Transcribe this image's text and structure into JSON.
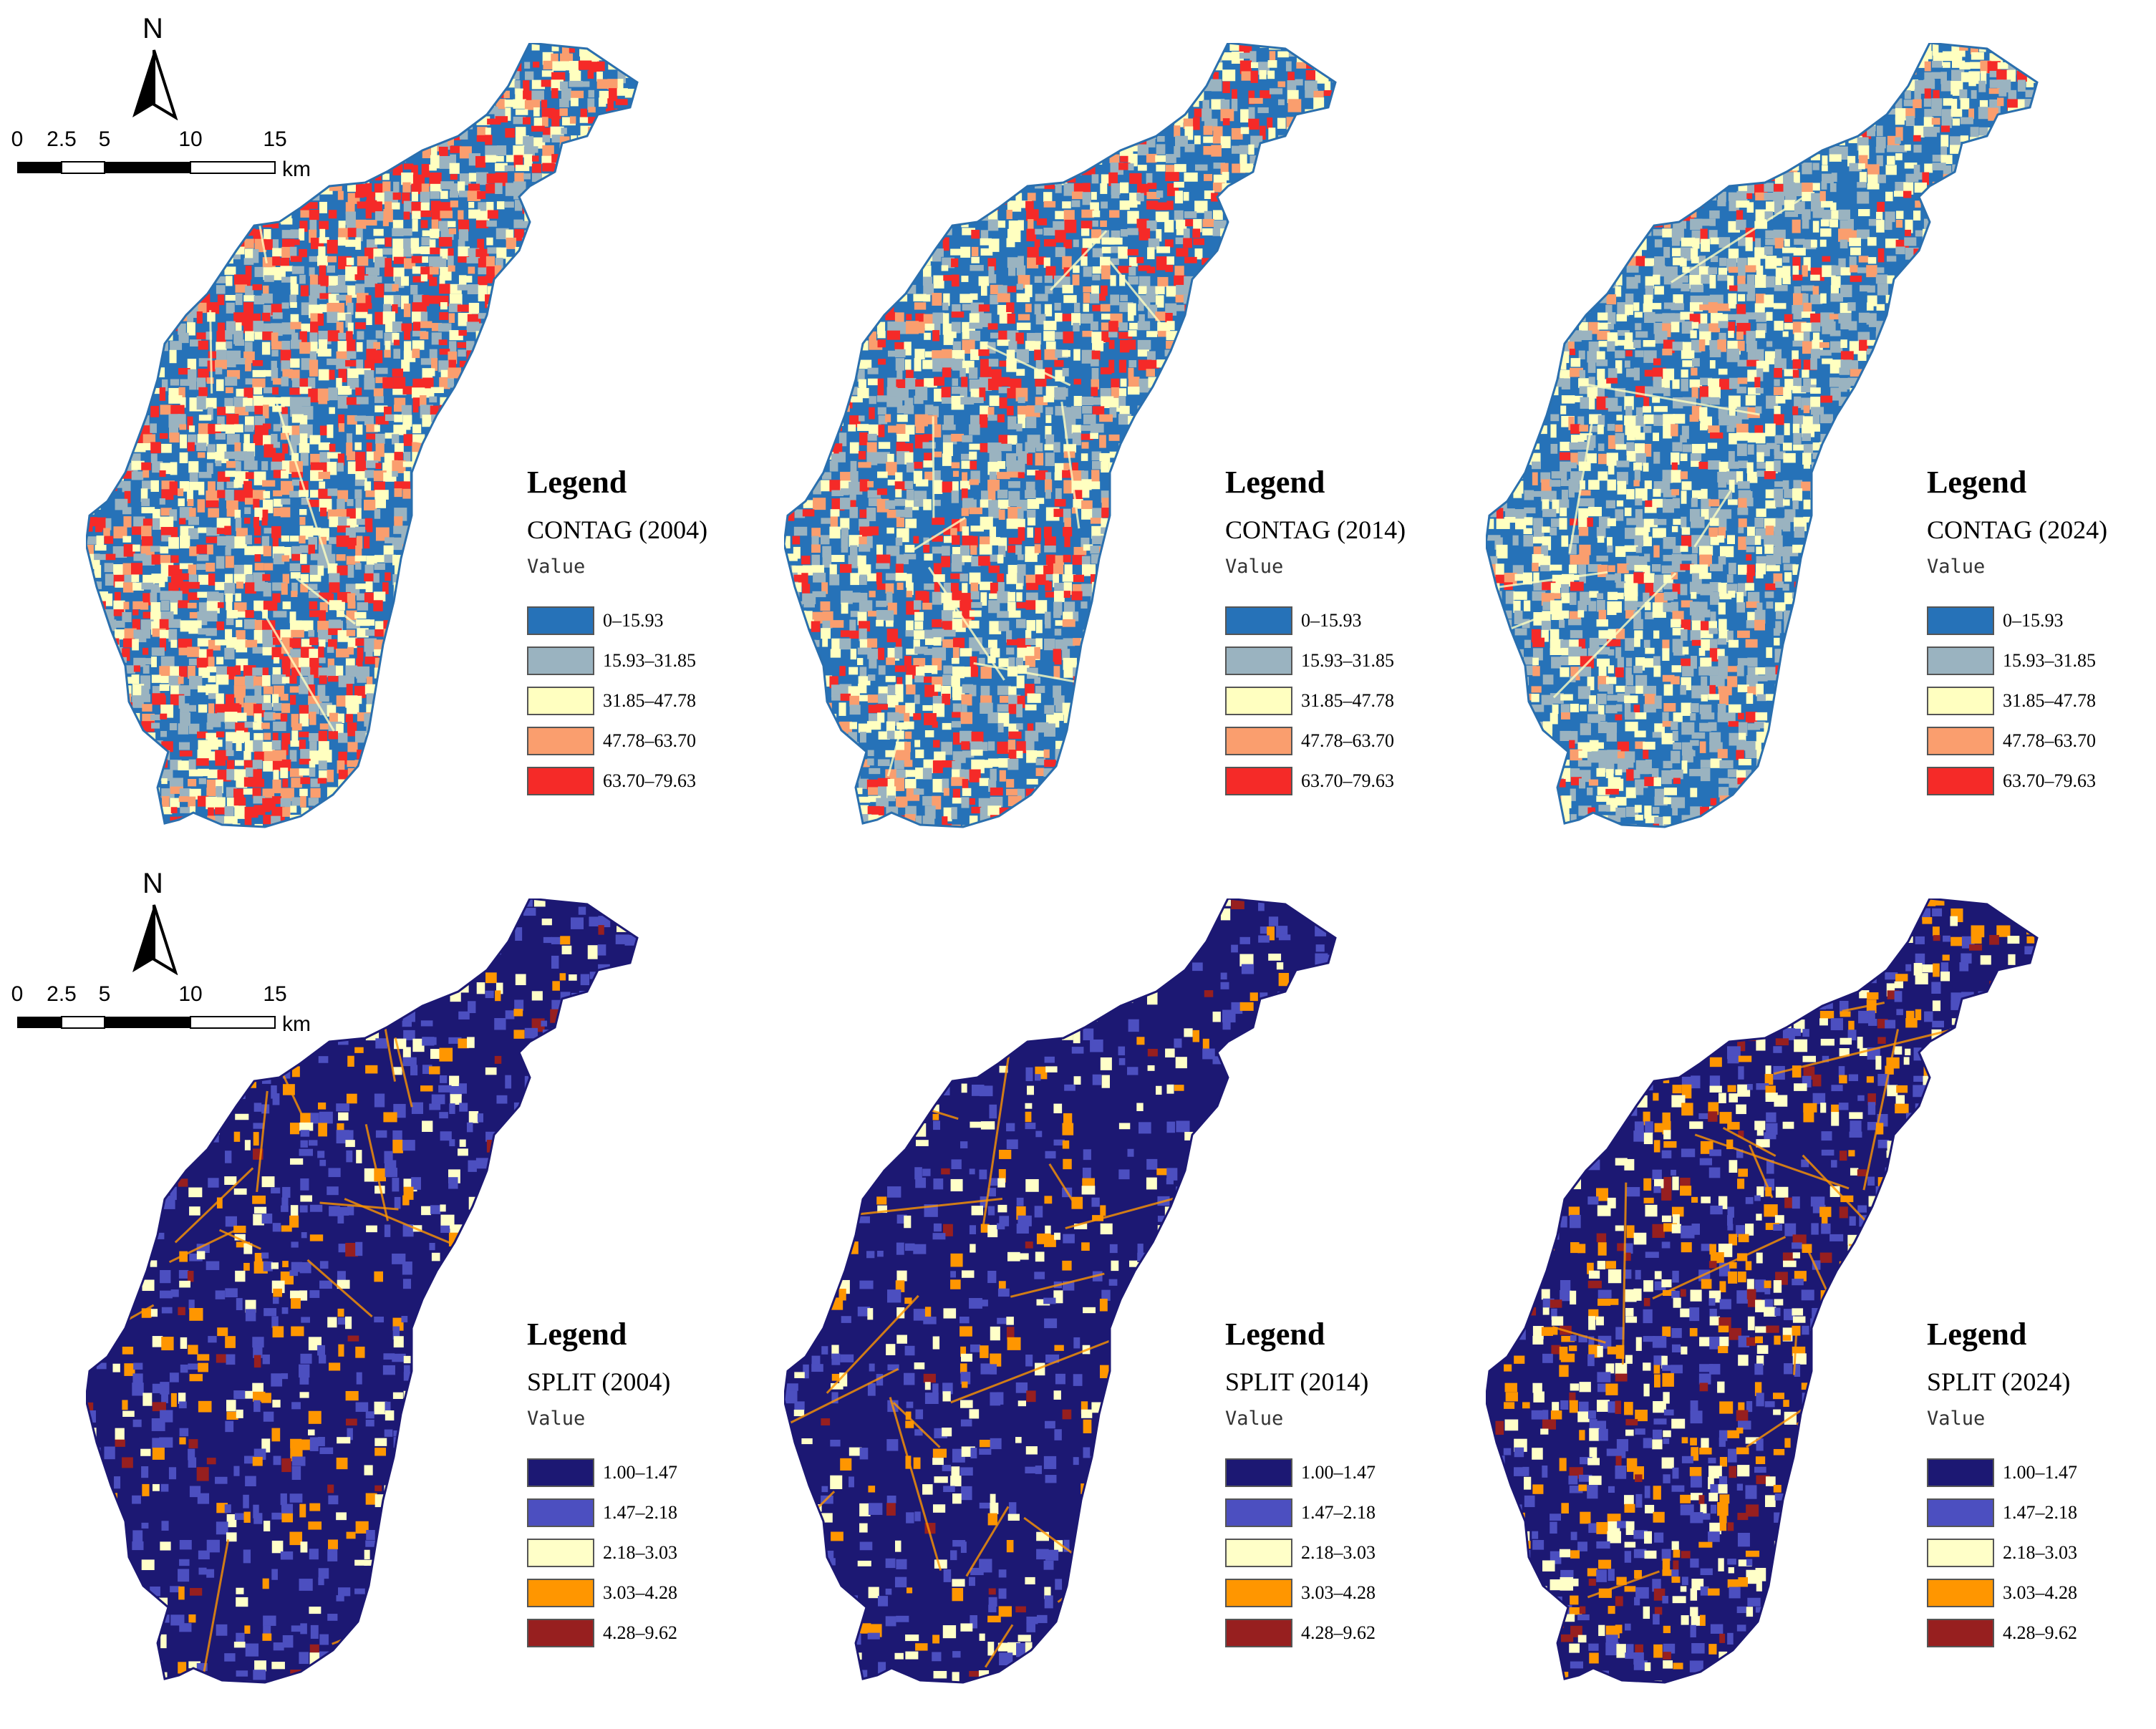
{
  "north_label": "N",
  "scale": {
    "ticks": [
      "0",
      "2.5",
      "5",
      "10",
      "15"
    ],
    "unit": "km"
  },
  "legend_heading": "Legend",
  "legend_value_label": "Value",
  "contag": {
    "titles": [
      "CONTAG (2004)",
      "CONTAG (2014)",
      "CONTAG (2024)"
    ],
    "classes": [
      {
        "label": "0–15.93",
        "color": "#2672b8"
      },
      {
        "label": "15.93–31.85",
        "color": "#9ab3c0"
      },
      {
        "label": "31.85–47.78",
        "color": "#ffffc0"
      },
      {
        "label": "47.78–63.70",
        "color": "#fa9e6e"
      },
      {
        "label": "63.70–79.63",
        "color": "#f52a28"
      }
    ],
    "mix": [
      [
        0.22,
        0.24,
        0.22,
        0.12,
        0.2
      ],
      [
        0.33,
        0.24,
        0.21,
        0.1,
        0.12
      ],
      [
        0.3,
        0.32,
        0.25,
        0.07,
        0.06
      ]
    ]
  },
  "split": {
    "titles": [
      "SPLIT (2004)",
      "SPLIT (2014)",
      "SPLIT (2024)"
    ],
    "classes": [
      {
        "label": "1.00–1.47",
        "color": "#1c1873"
      },
      {
        "label": "1.47–2.18",
        "color": "#4c4fc0"
      },
      {
        "label": "2.18–3.03",
        "color": "#ffffc8"
      },
      {
        "label": "3.03–4.28",
        "color": "#ff9600"
      },
      {
        "label": "4.28–9.62",
        "color": "#971f1f"
      }
    ],
    "mix": [
      [
        0.78,
        0.12,
        0.05,
        0.04,
        0.01
      ],
      [
        0.8,
        0.1,
        0.06,
        0.03,
        0.01
      ],
      [
        0.66,
        0.14,
        0.08,
        0.09,
        0.03
      ]
    ]
  }
}
